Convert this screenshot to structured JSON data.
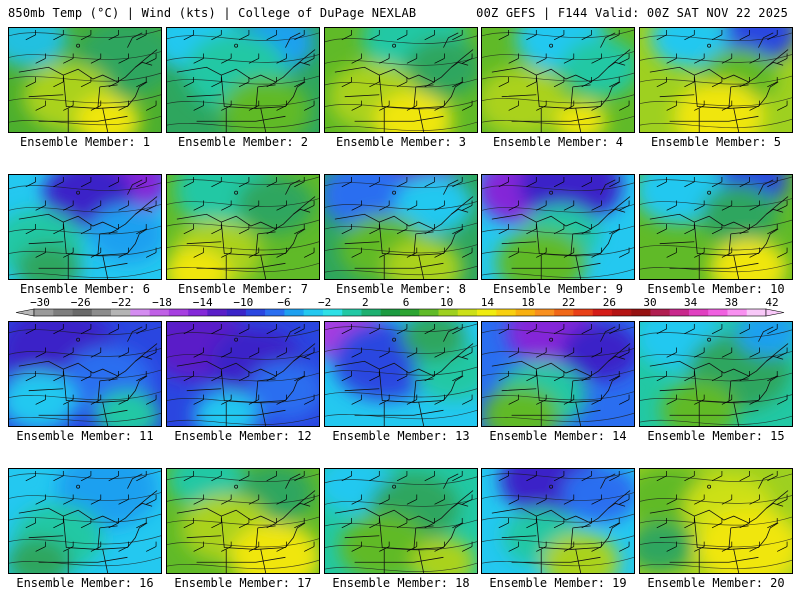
{
  "header": {
    "left": "850mb Temp (°C) | Wind (kts) | College of DuPage NEXLAB",
    "right": "00Z GEFS | F144 Valid: 00Z SAT NOV 22 2025"
  },
  "colorbar": {
    "labels": [
      "−30",
      "−26",
      "−22",
      "−18",
      "−14",
      "−10",
      "−6",
      "−2",
      "2",
      "6",
      "10",
      "14",
      "18",
      "22",
      "26",
      "30",
      "34",
      "38",
      "42"
    ],
    "colors": [
      "#9a9a9a",
      "#7e7e7e",
      "#6a6a6a",
      "#8c8c8c",
      "#b4b4b4",
      "#d48cf0",
      "#c060e6",
      "#a63ee0",
      "#8428d8",
      "#5a1ec8",
      "#3a24c8",
      "#2a46e0",
      "#2a6ef0",
      "#1ea0f0",
      "#24c8f0",
      "#2ee0e6",
      "#22c8a4",
      "#1eb070",
      "#1c9a40",
      "#2ca432",
      "#60ba28",
      "#9ed020",
      "#cce018",
      "#f0ec10",
      "#f8d010",
      "#f8b010",
      "#f89020",
      "#f06818",
      "#e84018",
      "#d41c18",
      "#b41414",
      "#961212",
      "#b01e50",
      "#c8288c",
      "#e040c0",
      "#f060e0",
      "#f890f0",
      "#f8c8f8"
    ]
  },
  "panels": [
    {
      "label": "Ensemble Member: 1",
      "base": "#4caf2e",
      "blobs": [
        {
          "c": "#22c0e0",
          "x": 20,
          "y": 10,
          "r": 30
        },
        {
          "c": "#2ea65e",
          "x": 120,
          "y": 30,
          "r": 40
        },
        {
          "c": "#aad21e",
          "x": 60,
          "y": 70,
          "r": 35
        },
        {
          "c": "#f0e610",
          "x": 100,
          "y": 95,
          "r": 25
        }
      ]
    },
    {
      "label": "Ensemble Member: 2",
      "base": "#2ea65e",
      "blobs": [
        {
          "c": "#24c8f0",
          "x": 30,
          "y": 10,
          "r": 35
        },
        {
          "c": "#1ea0f0",
          "x": 110,
          "y": 15,
          "r": 30
        },
        {
          "c": "#22c8a4",
          "x": 70,
          "y": 45,
          "r": 40
        },
        {
          "c": "#60ba28",
          "x": 100,
          "y": 85,
          "r": 35
        }
      ]
    },
    {
      "label": "Ensemble Member: 3",
      "base": "#60ba28",
      "blobs": [
        {
          "c": "#22c8a4",
          "x": 90,
          "y": 10,
          "r": 40
        },
        {
          "c": "#2ea65e",
          "x": 120,
          "y": 40,
          "r": 30
        },
        {
          "c": "#aad21e",
          "x": 50,
          "y": 70,
          "r": 35
        },
        {
          "c": "#f0e610",
          "x": 90,
          "y": 95,
          "r": 30
        }
      ]
    },
    {
      "label": "Ensemble Member: 4",
      "base": "#60ba28",
      "blobs": [
        {
          "c": "#24c8f0",
          "x": 80,
          "y": 10,
          "r": 35
        },
        {
          "c": "#22c8a4",
          "x": 120,
          "y": 40,
          "r": 30
        },
        {
          "c": "#aad21e",
          "x": 40,
          "y": 75,
          "r": 35
        },
        {
          "c": "#f0e610",
          "x": 100,
          "y": 95,
          "r": 20
        }
      ]
    },
    {
      "label": "Ensemble Member: 5",
      "base": "#9ed020",
      "blobs": [
        {
          "c": "#2a46e0",
          "x": 120,
          "y": 5,
          "r": 30
        },
        {
          "c": "#24c8f0",
          "x": 50,
          "y": 10,
          "r": 30
        },
        {
          "c": "#60ba28",
          "x": 100,
          "y": 50,
          "r": 30
        },
        {
          "c": "#f0e610",
          "x": 80,
          "y": 90,
          "r": 35
        }
      ]
    },
    {
      "label": "Ensemble Member: 6",
      "base": "#24c8f0",
      "blobs": [
        {
          "c": "#8428d8",
          "x": 110,
          "y": 5,
          "r": 40
        },
        {
          "c": "#3a24c8",
          "x": 80,
          "y": 20,
          "r": 35
        },
        {
          "c": "#1ea0f0",
          "x": 120,
          "y": 60,
          "r": 30
        },
        {
          "c": "#22c8a4",
          "x": 30,
          "y": 70,
          "r": 35
        },
        {
          "c": "#2ea65e",
          "x": 40,
          "y": 95,
          "r": 25
        }
      ]
    },
    {
      "label": "Ensemble Member: 7",
      "base": "#60ba28",
      "blobs": [
        {
          "c": "#22c8a4",
          "x": 60,
          "y": 15,
          "r": 40
        },
        {
          "c": "#2ea65e",
          "x": 110,
          "y": 30,
          "r": 30
        },
        {
          "c": "#aad21e",
          "x": 50,
          "y": 80,
          "r": 35
        },
        {
          "c": "#f0e610",
          "x": 30,
          "y": 100,
          "r": 25
        }
      ]
    },
    {
      "label": "Ensemble Member: 8",
      "base": "#2ea65e",
      "blobs": [
        {
          "c": "#5a1ec8",
          "x": 80,
          "y": 5,
          "r": 40
        },
        {
          "c": "#2a6ef0",
          "x": 40,
          "y": 20,
          "r": 35
        },
        {
          "c": "#24c8f0",
          "x": 110,
          "y": 30,
          "r": 30
        },
        {
          "c": "#60ba28",
          "x": 60,
          "y": 75,
          "r": 35
        },
        {
          "c": "#aad21e",
          "x": 100,
          "y": 95,
          "r": 30
        }
      ]
    },
    {
      "label": "Ensemble Member: 9",
      "base": "#24c8f0",
      "blobs": [
        {
          "c": "#8428d8",
          "x": 40,
          "y": 15,
          "r": 35
        },
        {
          "c": "#3a24c8",
          "x": 90,
          "y": 10,
          "r": 40
        },
        {
          "c": "#22c8a4",
          "x": 80,
          "y": 60,
          "r": 30
        },
        {
          "c": "#60ba28",
          "x": 60,
          "y": 90,
          "r": 35
        }
      ]
    },
    {
      "label": "Ensemble Member: 10",
      "base": "#60ba28",
      "blobs": [
        {
          "c": "#2a46e0",
          "x": 110,
          "y": 5,
          "r": 30
        },
        {
          "c": "#24c8f0",
          "x": 40,
          "y": 15,
          "r": 35
        },
        {
          "c": "#2ea65e",
          "x": 100,
          "y": 40,
          "r": 30
        },
        {
          "c": "#f0e610",
          "x": 110,
          "y": 95,
          "r": 30
        }
      ]
    },
    {
      "label": "Ensemble Member: 11",
      "base": "#2a46e0",
      "blobs": [
        {
          "c": "#3a24c8",
          "x": 50,
          "y": 30,
          "r": 45
        },
        {
          "c": "#2a6ef0",
          "x": 100,
          "y": 60,
          "r": 35
        },
        {
          "c": "#24c8f0",
          "x": 30,
          "y": 80,
          "r": 30
        },
        {
          "c": "#22c8a4",
          "x": 120,
          "y": 95,
          "r": 25
        }
      ]
    },
    {
      "label": "Ensemble Member: 12",
      "base": "#2a46e0",
      "blobs": [
        {
          "c": "#5a1ec8",
          "x": 30,
          "y": 20,
          "r": 40
        },
        {
          "c": "#3a24c8",
          "x": 90,
          "y": 40,
          "r": 35
        },
        {
          "c": "#2a6ef0",
          "x": 120,
          "y": 70,
          "r": 30
        },
        {
          "c": "#24c8f0",
          "x": 60,
          "y": 95,
          "r": 25
        }
      ]
    },
    {
      "label": "Ensemble Member: 13",
      "base": "#24c8f0",
      "blobs": [
        {
          "c": "#a63ee0",
          "x": 20,
          "y": 10,
          "r": 30
        },
        {
          "c": "#2a46e0",
          "x": 60,
          "y": 40,
          "r": 40
        },
        {
          "c": "#22c8a4",
          "x": 130,
          "y": 50,
          "r": 30
        },
        {
          "c": "#2ea65e",
          "x": 110,
          "y": 15,
          "r": 25
        }
      ]
    },
    {
      "label": "Ensemble Member: 14",
      "base": "#2a6ef0",
      "blobs": [
        {
          "c": "#8428d8",
          "x": 70,
          "y": 10,
          "r": 35
        },
        {
          "c": "#3a24c8",
          "x": 120,
          "y": 30,
          "r": 30
        },
        {
          "c": "#22c8a4",
          "x": 60,
          "y": 75,
          "r": 35
        },
        {
          "c": "#60ba28",
          "x": 40,
          "y": 95,
          "r": 30
        }
      ]
    },
    {
      "label": "Ensemble Member: 15",
      "base": "#22c8a4",
      "blobs": [
        {
          "c": "#24c8f0",
          "x": 40,
          "y": 15,
          "r": 35
        },
        {
          "c": "#2ea65e",
          "x": 100,
          "y": 50,
          "r": 40
        },
        {
          "c": "#60ba28",
          "x": 60,
          "y": 90,
          "r": 30
        },
        {
          "c": "#1ea0f0",
          "x": 130,
          "y": 10,
          "r": 25
        }
      ]
    },
    {
      "label": "Ensemble Member: 16",
      "base": "#24c8f0",
      "blobs": [
        {
          "c": "#1ea0f0",
          "x": 100,
          "y": 20,
          "r": 40
        },
        {
          "c": "#22c8a4",
          "x": 50,
          "y": 70,
          "r": 35
        },
        {
          "c": "#2ea65e",
          "x": 30,
          "y": 95,
          "r": 25
        }
      ]
    },
    {
      "label": "Ensemble Member: 17",
      "base": "#60ba28",
      "blobs": [
        {
          "c": "#22c8a4",
          "x": 40,
          "y": 10,
          "r": 30
        },
        {
          "c": "#2ea65e",
          "x": 110,
          "y": 25,
          "r": 30
        },
        {
          "c": "#aad21e",
          "x": 60,
          "y": 60,
          "r": 35
        },
        {
          "c": "#f0e610",
          "x": 110,
          "y": 90,
          "r": 35
        }
      ]
    },
    {
      "label": "Ensemble Member: 18",
      "base": "#22c8a4",
      "blobs": [
        {
          "c": "#24c8f0",
          "x": 30,
          "y": 15,
          "r": 30
        },
        {
          "c": "#2ea65e",
          "x": 90,
          "y": 40,
          "r": 35
        },
        {
          "c": "#60ba28",
          "x": 60,
          "y": 80,
          "r": 35
        },
        {
          "c": "#aad21e",
          "x": 120,
          "y": 95,
          "r": 25
        }
      ]
    },
    {
      "label": "Ensemble Member: 19",
      "base": "#24c8f0",
      "blobs": [
        {
          "c": "#3a24c8",
          "x": 70,
          "y": 10,
          "r": 40
        },
        {
          "c": "#2a6ef0",
          "x": 120,
          "y": 25,
          "r": 30
        },
        {
          "c": "#22c8a4",
          "x": 60,
          "y": 70,
          "r": 30
        },
        {
          "c": "#aad21e",
          "x": 100,
          "y": 95,
          "r": 30
        }
      ]
    },
    {
      "label": "Ensemble Member: 20",
      "base": "#9ed020",
      "blobs": [
        {
          "c": "#60ba28",
          "x": 30,
          "y": 30,
          "r": 35
        },
        {
          "c": "#cce018",
          "x": 90,
          "y": 40,
          "r": 35
        },
        {
          "c": "#f0e610",
          "x": 110,
          "y": 80,
          "r": 40
        },
        {
          "c": "#2ea65e",
          "x": 20,
          "y": 80,
          "r": 25
        }
      ]
    }
  ]
}
